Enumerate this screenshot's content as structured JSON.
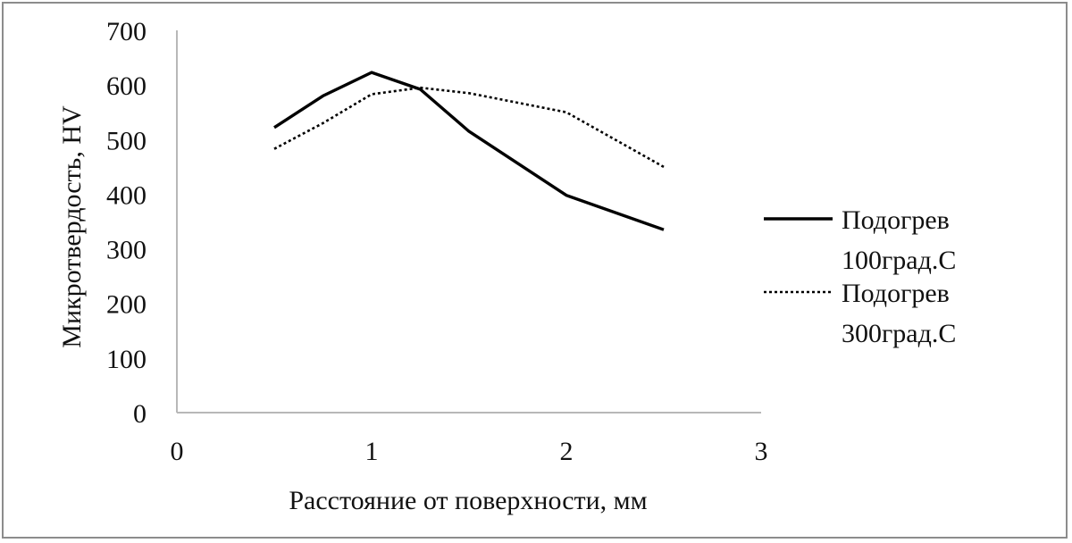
{
  "chart_data": {
    "type": "line",
    "title": "",
    "xlabel": "Расстояние от поверхности, мм",
    "ylabel": "Микротвердость, HV",
    "xlim": [
      0,
      3
    ],
    "ylim": [
      0,
      700
    ],
    "xticks": [
      "0",
      "1",
      "2",
      "3"
    ],
    "yticks": [
      "0",
      "100",
      "200",
      "300",
      "400",
      "500",
      "600",
      "700"
    ],
    "grid": false,
    "legend_position": "right",
    "series": [
      {
        "name_lines": [
          "Подогрев",
          "100град.С"
        ],
        "style": "solid",
        "color": "#000000",
        "x": [
          0.5,
          0.75,
          1.0,
          1.25,
          1.5,
          2.0,
          2.5
        ],
        "y": [
          522,
          580,
          623,
          592,
          515,
          398,
          335
        ]
      },
      {
        "name_lines": [
          "Подогрев",
          "300град.С"
        ],
        "style": "dotted",
        "color": "#000000",
        "x": [
          0.5,
          0.75,
          1.0,
          1.25,
          1.5,
          2.0,
          2.5
        ],
        "y": [
          483,
          530,
          583,
          595,
          585,
          550,
          450
        ]
      }
    ]
  }
}
